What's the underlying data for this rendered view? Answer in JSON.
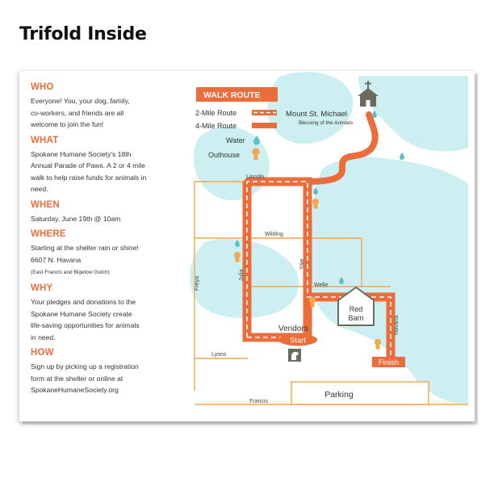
{
  "title": "Trifold Inside",
  "info": {
    "who": {
      "heading": "WHO",
      "lines": [
        "Everyone! You, your dog, family,",
        "co-workers, and friends are all",
        "welcome to join the fun!"
      ]
    },
    "what": {
      "heading": "WHAT",
      "lines": [
        "Spokane Humane Society's 18th",
        "Annual Parade of Paws. A 2 or 4 mile",
        "walk to help raise funds for animals in",
        "need."
      ]
    },
    "when": {
      "heading": "WHEN",
      "lines": [
        "Saturday, June 19th @ 10am"
      ]
    },
    "where": {
      "heading": "WHERE",
      "lines": [
        "Starting at the shelter rain or shine!",
        "6607 N. Havana"
      ],
      "note": "(East Francis and Bigelow Gulch)"
    },
    "why": {
      "heading": "WHY",
      "lines": [
        "Your pledges and donations to the",
        "Spokane Humane Society create",
        "life-saving opportunities for animals",
        "in need."
      ]
    },
    "how": {
      "heading": "HOW",
      "lines": [
        "Sign up by picking up a registration",
        "form at the shelter or online at",
        "SpokaneHumaneSociety.org"
      ]
    }
  },
  "legend": {
    "title": "WALK ROUTE",
    "route2": "2-Mile Route",
    "route4": "4-Mile Route",
    "water": "Water",
    "outhouse": "Outhouse"
  },
  "map": {
    "church_name": "Mount St. Michael",
    "church_sub": "Blessing of the Animals",
    "streets": {
      "lincoln": "Lincoln",
      "wilding": "Wilding",
      "welle": "Welle",
      "lyons": "Lyons",
      "francis": "Francis",
      "freya": "Freya",
      "julia": "Julia",
      "yale": "Yale",
      "havana": "Havana"
    },
    "vendors": "Vendors",
    "start": "Start",
    "finish": "Finish",
    "barn_line1": "Red",
    "barn_line2": "Barn",
    "parking": "Parking"
  },
  "colors": {
    "orange": "#ec6d3c",
    "light_orange": "#f4a64a",
    "teal": "#5bbfcf",
    "blob": "#cdeff1",
    "text": "#333333",
    "barn": "#6b6b60"
  }
}
